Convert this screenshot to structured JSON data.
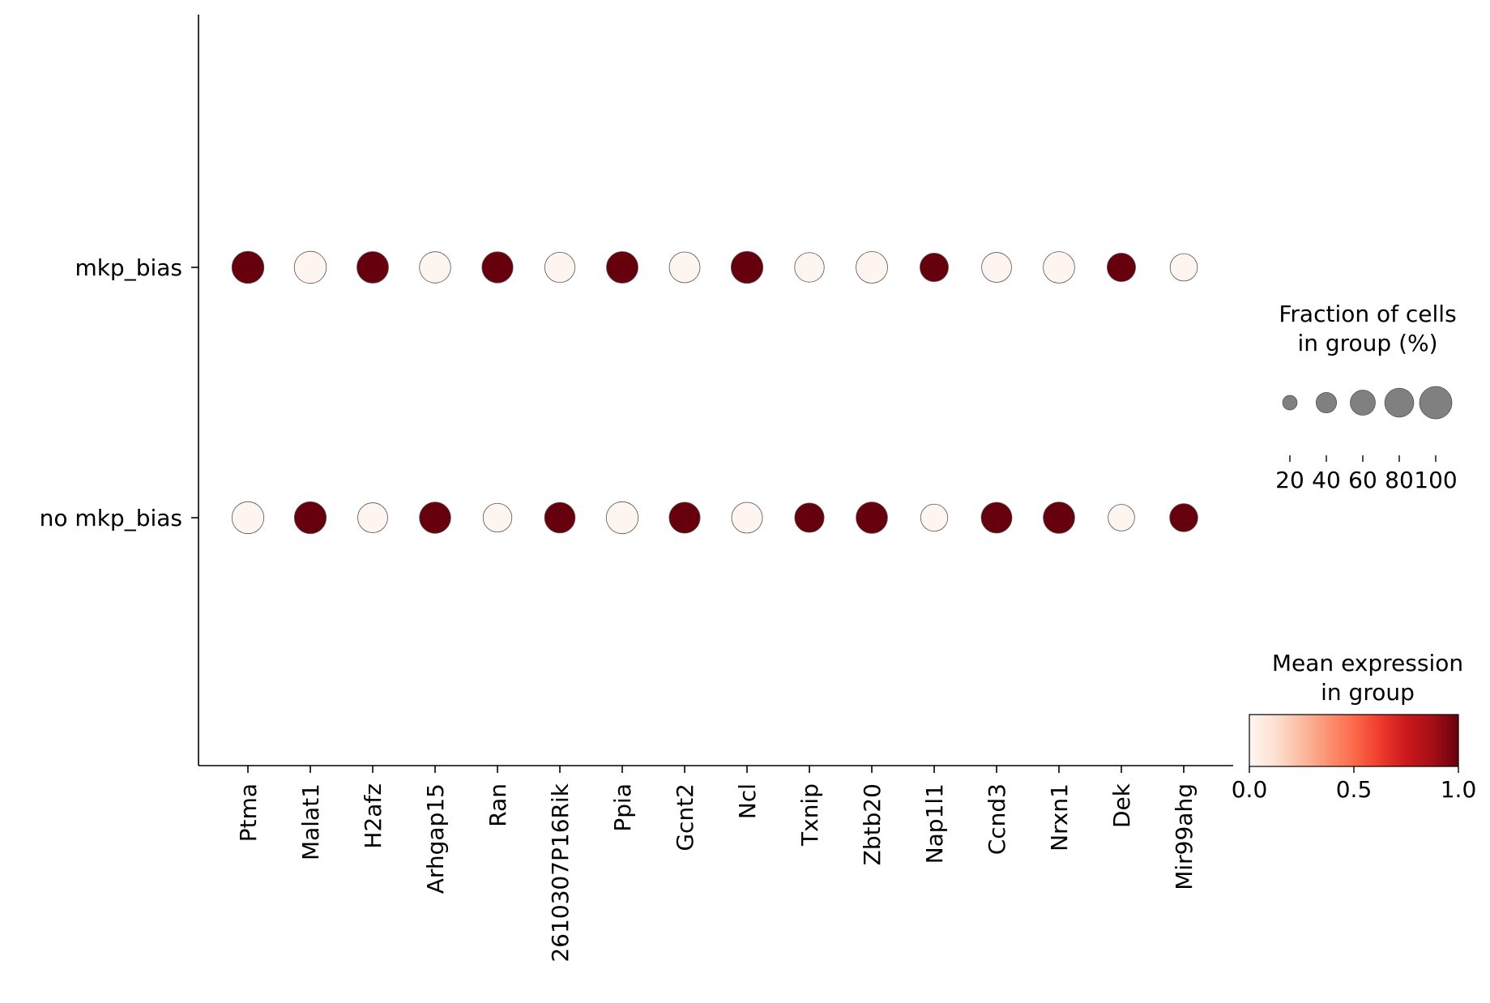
{
  "chart_data": {
    "type": "dotplot",
    "title": "",
    "xlabel": "",
    "ylabel": "",
    "genes": [
      "Ptma",
      "Malat1",
      "H2afz",
      "Arhgap15",
      "Ran",
      "2610307P16Rik",
      "Ppia",
      "Gcnt2",
      "Ncl",
      "Txnip",
      "Zbtb20",
      "Nap1l1",
      "Ccnd3",
      "Nrxn1",
      "Dek",
      "Mir99ahg"
    ],
    "groups": [
      "mkp_bias",
      "no mkp_bias"
    ],
    "series": [
      {
        "group": "mkp_bias",
        "fraction": [
          98,
          98,
          95,
          93,
          92,
          87,
          95,
          90,
          97,
          83,
          95,
          77,
          85,
          94,
          77,
          71
        ],
        "mean_expression": [
          1.0,
          0.0,
          1.0,
          0.0,
          1.0,
          0.0,
          1.0,
          0.0,
          1.0,
          0.0,
          0.0,
          1.0,
          0.0,
          0.0,
          1.0,
          0.0
        ]
      },
      {
        "group": "no mkp_bias",
        "fraction": [
          97,
          97,
          85,
          93,
          79,
          89,
          97,
          91,
          90,
          82,
          94,
          70,
          90,
          94,
          67,
          75
        ],
        "mean_expression": [
          0.0,
          1.0,
          0.0,
          1.0,
          0.0,
          1.0,
          0.0,
          1.0,
          0.0,
          1.0,
          1.0,
          0.0,
          1.0,
          1.0,
          0.0,
          1.0
        ]
      }
    ],
    "size_legend": {
      "title_lines": [
        "Fraction of cells",
        "in group (%)"
      ],
      "values": [
        20,
        40,
        60,
        80,
        100
      ],
      "tick_labels": [
        "20",
        "40",
        "60",
        "80",
        "100"
      ],
      "dot_color": "#808080"
    },
    "color_legend": {
      "title_lines": [
        "Mean expression",
        "in group"
      ],
      "range": [
        0.0,
        1.0
      ],
      "tick_labels": [
        "0.0",
        "0.5",
        "1.0"
      ],
      "colormap": "Reds",
      "stops": [
        "#fff5f0",
        "#fee0d2",
        "#fcbba1",
        "#fc9272",
        "#fb6a4a",
        "#ef3b2c",
        "#cb181d",
        "#a50f15",
        "#67000d"
      ]
    }
  }
}
